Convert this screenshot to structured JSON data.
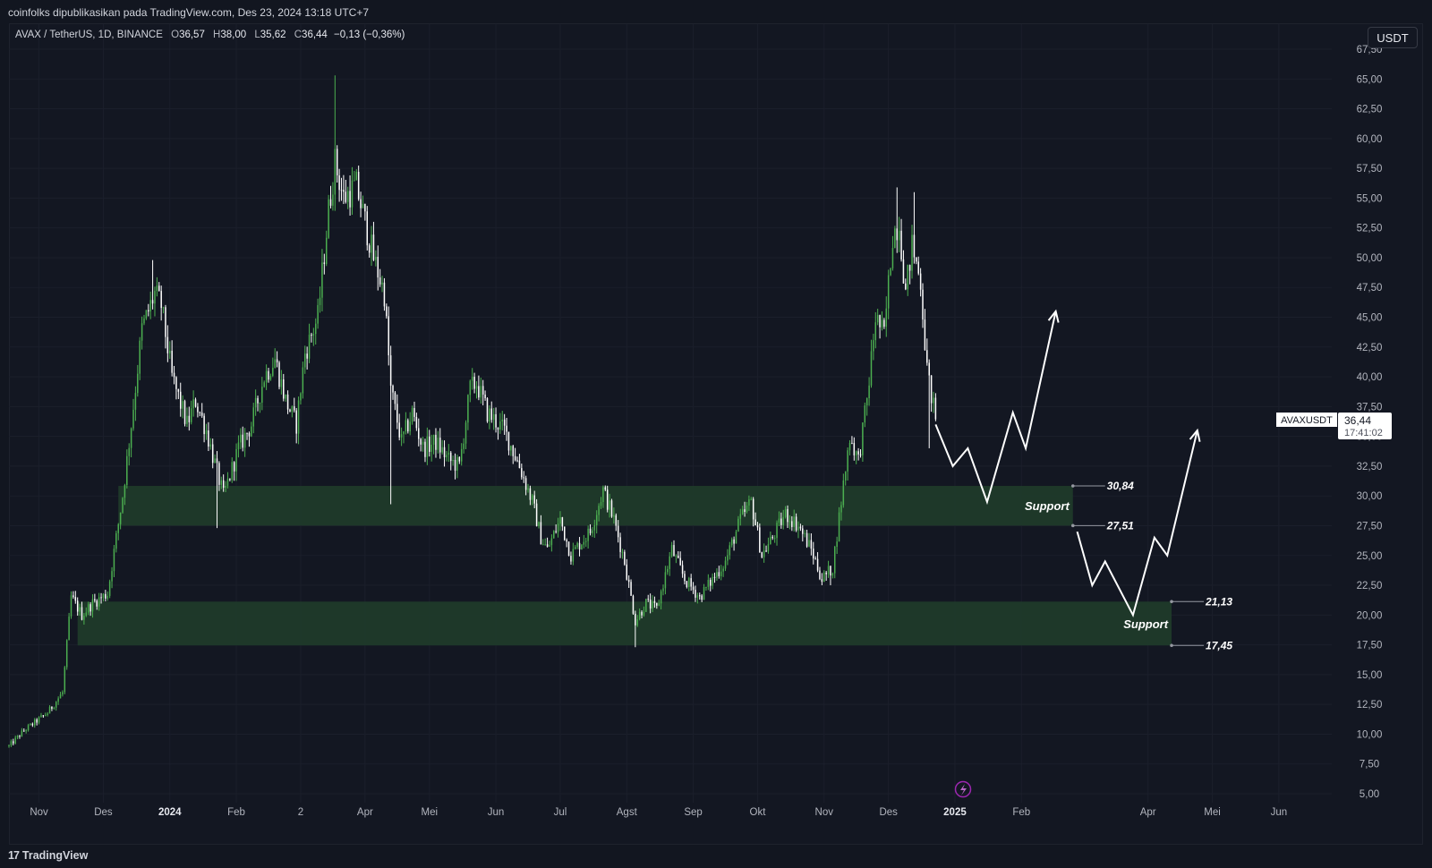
{
  "header": {
    "publisher_line": "coinfolks dipublikasikan pada TradingView.com, Des 23, 2024 13:18 UTC+7"
  },
  "legend": {
    "symbol": "AVAX / TetherUS, 1D, BINANCE",
    "open_label": "O",
    "open": "36,57",
    "high_label": "H",
    "high": "38,00",
    "low_label": "L",
    "low": "35,62",
    "close_label": "C",
    "close": "36,44",
    "change": "−0,13 (−0,36%)"
  },
  "currency_button": "USDT",
  "price_tag": {
    "symbol": "AVAXUSDT",
    "price": "36,44",
    "countdown": "17:41:02"
  },
  "footer": {
    "brand": "TradingView"
  },
  "colors": {
    "background": "#131722",
    "candle_up": "#4caf50",
    "candle_down": "#ffffff",
    "support_zone": "#1f3a2a",
    "projection": "#ffffff",
    "grid": "#1b1f2b"
  },
  "icons": {
    "lightning": "lightning-icon",
    "brand": "tradingview-logo-icon"
  },
  "chart_data": {
    "type": "candlestick",
    "timeframe": "1D",
    "x_ticks": [
      {
        "label": "Nov",
        "date": "2023-11-01"
      },
      {
        "label": "Des",
        "date": "2023-12-01"
      },
      {
        "label": "2024",
        "date": "2024-01-01",
        "bold": true
      },
      {
        "label": "Feb",
        "date": "2024-02-01"
      },
      {
        "label": "2",
        "date": "2024-03-02"
      },
      {
        "label": "Apr",
        "date": "2024-04-01"
      },
      {
        "label": "Mei",
        "date": "2024-05-01"
      },
      {
        "label": "Jun",
        "date": "2024-06-01"
      },
      {
        "label": "Jul",
        "date": "2024-07-01"
      },
      {
        "label": "Agst",
        "date": "2024-08-01"
      },
      {
        "label": "Sep",
        "date": "2024-09-01"
      },
      {
        "label": "Okt",
        "date": "2024-10-01"
      },
      {
        "label": "Nov",
        "date": "2024-11-01"
      },
      {
        "label": "Des",
        "date": "2024-12-01"
      },
      {
        "label": "2025",
        "date": "2025-01-01",
        "bold": true
      },
      {
        "label": "Feb",
        "date": "2025-02-01"
      },
      {
        "label": "Apr",
        "date": "2025-04-01"
      },
      {
        "label": "Mei",
        "date": "2025-05-01"
      },
      {
        "label": "Jun",
        "date": "2025-06-01"
      }
    ],
    "y_ticks": [
      "5,00",
      "7,50",
      "10,00",
      "12,50",
      "15,00",
      "17,50",
      "20,00",
      "22,50",
      "25,00",
      "27,50",
      "30,00",
      "32,50",
      "35,00",
      "37,50",
      "40,00",
      "42,50",
      "45,00",
      "47,50",
      "50,00",
      "52,50",
      "55,00",
      "57,50",
      "60,00",
      "62,50",
      "65,00",
      "67,50"
    ],
    "ylim": [
      5,
      67.5
    ],
    "xlim": [
      "2023-10-18",
      "2025-06-24"
    ],
    "price_anchors": [
      {
        "date": "2023-10-18",
        "price": 9.0
      },
      {
        "date": "2023-10-25",
        "price": 10.3
      },
      {
        "date": "2023-11-05",
        "price": 11.8
      },
      {
        "date": "2023-11-12",
        "price": 13.5
      },
      {
        "date": "2023-11-16",
        "price": 21.5
      },
      {
        "date": "2023-11-21",
        "price": 20.0
      },
      {
        "date": "2023-11-26",
        "price": 21.0
      },
      {
        "date": "2023-12-03",
        "price": 21.8
      },
      {
        "date": "2023-12-10",
        "price": 30.0
      },
      {
        "date": "2023-12-15",
        "price": 37.5
      },
      {
        "date": "2023-12-19",
        "price": 44.0
      },
      {
        "date": "2023-12-25",
        "price": 47.0
      },
      {
        "date": "2023-12-28",
        "price": 46.0
      },
      {
        "date": "2024-01-02",
        "price": 40.0
      },
      {
        "date": "2024-01-09",
        "price": 36.0
      },
      {
        "date": "2024-01-13",
        "price": 38.0
      },
      {
        "date": "2024-01-18",
        "price": 35.5
      },
      {
        "date": "2024-01-23",
        "price": 32.0
      },
      {
        "date": "2024-01-26",
        "price": 30.0
      },
      {
        "date": "2024-02-02",
        "price": 34.0
      },
      {
        "date": "2024-02-08",
        "price": 36.0
      },
      {
        "date": "2024-02-14",
        "price": 40.0
      },
      {
        "date": "2024-02-19",
        "price": 41.5
      },
      {
        "date": "2024-02-24",
        "price": 38.0
      },
      {
        "date": "2024-02-29",
        "price": 36.0
      },
      {
        "date": "2024-03-04",
        "price": 42.0
      },
      {
        "date": "2024-03-10",
        "price": 45.0
      },
      {
        "date": "2024-03-15",
        "price": 54.0
      },
      {
        "date": "2024-03-18",
        "price": 58.0
      },
      {
        "date": "2024-03-22",
        "price": 55.0
      },
      {
        "date": "2024-03-28",
        "price": 56.0
      },
      {
        "date": "2024-04-05",
        "price": 50.0
      },
      {
        "date": "2024-04-10",
        "price": 47.0
      },
      {
        "date": "2024-04-13",
        "price": 39.0
      },
      {
        "date": "2024-04-18",
        "price": 34.5
      },
      {
        "date": "2024-04-23",
        "price": 37.0
      },
      {
        "date": "2024-04-28",
        "price": 34.0
      },
      {
        "date": "2024-05-04",
        "price": 34.5
      },
      {
        "date": "2024-05-10",
        "price": 33.0
      },
      {
        "date": "2024-05-15",
        "price": 32.5
      },
      {
        "date": "2024-05-20",
        "price": 39.0
      },
      {
        "date": "2024-05-23",
        "price": 39.5
      },
      {
        "date": "2024-05-28",
        "price": 37.0
      },
      {
        "date": "2024-06-05",
        "price": 35.5
      },
      {
        "date": "2024-06-12",
        "price": 32.5
      },
      {
        "date": "2024-06-18",
        "price": 29.5
      },
      {
        "date": "2024-06-22",
        "price": 26.5
      },
      {
        "date": "2024-06-25",
        "price": 25.5
      },
      {
        "date": "2024-07-01",
        "price": 28.0
      },
      {
        "date": "2024-07-06",
        "price": 25.0
      },
      {
        "date": "2024-07-10",
        "price": 26.0
      },
      {
        "date": "2024-07-15",
        "price": 27.0
      },
      {
        "date": "2024-07-21",
        "price": 30.5
      },
      {
        "date": "2024-07-26",
        "price": 28.0
      },
      {
        "date": "2024-07-31",
        "price": 24.5
      },
      {
        "date": "2024-08-05",
        "price": 19.5
      },
      {
        "date": "2024-08-10",
        "price": 21.0
      },
      {
        "date": "2024-08-15",
        "price": 20.5
      },
      {
        "date": "2024-08-22",
        "price": 25.5
      },
      {
        "date": "2024-08-28",
        "price": 23.0
      },
      {
        "date": "2024-09-04",
        "price": 21.5
      },
      {
        "date": "2024-09-10",
        "price": 23.0
      },
      {
        "date": "2024-09-16",
        "price": 24.5
      },
      {
        "date": "2024-09-23",
        "price": 28.0
      },
      {
        "date": "2024-09-28",
        "price": 29.5
      },
      {
        "date": "2024-10-03",
        "price": 25.0
      },
      {
        "date": "2024-10-08",
        "price": 26.5
      },
      {
        "date": "2024-10-14",
        "price": 28.5
      },
      {
        "date": "2024-10-20",
        "price": 27.5
      },
      {
        "date": "2024-10-26",
        "price": 25.5
      },
      {
        "date": "2024-10-31",
        "price": 23.0
      },
      {
        "date": "2024-11-05",
        "price": 24.0
      },
      {
        "date": "2024-11-10",
        "price": 31.0
      },
      {
        "date": "2024-11-13",
        "price": 35.0
      },
      {
        "date": "2024-11-17",
        "price": 33.0
      },
      {
        "date": "2024-11-21",
        "price": 38.0
      },
      {
        "date": "2024-11-25",
        "price": 45.0
      },
      {
        "date": "2024-11-29",
        "price": 43.5
      },
      {
        "date": "2024-12-03",
        "price": 52.0
      },
      {
        "date": "2024-12-06",
        "price": 53.0
      },
      {
        "date": "2024-12-09",
        "price": 47.0
      },
      {
        "date": "2024-12-12",
        "price": 51.0
      },
      {
        "date": "2024-12-16",
        "price": 48.0
      },
      {
        "date": "2024-12-19",
        "price": 40.5
      },
      {
        "date": "2024-12-23",
        "price": 36.44
      }
    ],
    "notable_wicks": [
      {
        "date": "2024-03-18",
        "high": 65.3
      },
      {
        "date": "2023-12-24",
        "high": 49.8
      },
      {
        "date": "2024-12-05",
        "high": 55.9
      },
      {
        "date": "2024-12-13",
        "high": 55.5
      },
      {
        "date": "2024-08-05",
        "low": 17.3
      },
      {
        "date": "2024-04-13",
        "low": 29.3
      },
      {
        "date": "2024-01-23",
        "low": 27.3
      },
      {
        "date": "2024-11-04",
        "low": 22.5
      },
      {
        "date": "2024-12-20",
        "low": 34.0
      }
    ],
    "zones": [
      {
        "label": "Support",
        "top": 30.84,
        "bottom": 27.51,
        "top_label": "30,84",
        "bottom_label": "27,51",
        "from": "2023-12-08",
        "to": "2025-02-25"
      },
      {
        "label": "Support",
        "top": 21.13,
        "bottom": 17.45,
        "top_label": "21,13",
        "bottom_label": "17,45",
        "from": "2023-11-19",
        "to": "2025-04-12"
      }
    ],
    "projections": [
      {
        "points": [
          [
            "2024-12-23",
            36.0
          ],
          [
            "2024-12-31",
            32.5
          ],
          [
            "2025-01-07",
            34.0
          ],
          [
            "2025-01-16",
            29.5
          ],
          [
            "2025-01-28",
            37.0
          ],
          [
            "2025-02-03",
            34.0
          ],
          [
            "2025-02-17",
            45.5
          ]
        ],
        "arrow": true
      },
      {
        "points": [
          [
            "2025-02-27",
            27.0
          ],
          [
            "2025-03-06",
            22.5
          ],
          [
            "2025-03-12",
            24.5
          ],
          [
            "2025-03-25",
            20.0
          ],
          [
            "2025-04-04",
            26.5
          ],
          [
            "2025-04-10",
            25.0
          ],
          [
            "2025-04-24",
            35.5
          ]
        ],
        "arrow": true
      }
    ]
  }
}
